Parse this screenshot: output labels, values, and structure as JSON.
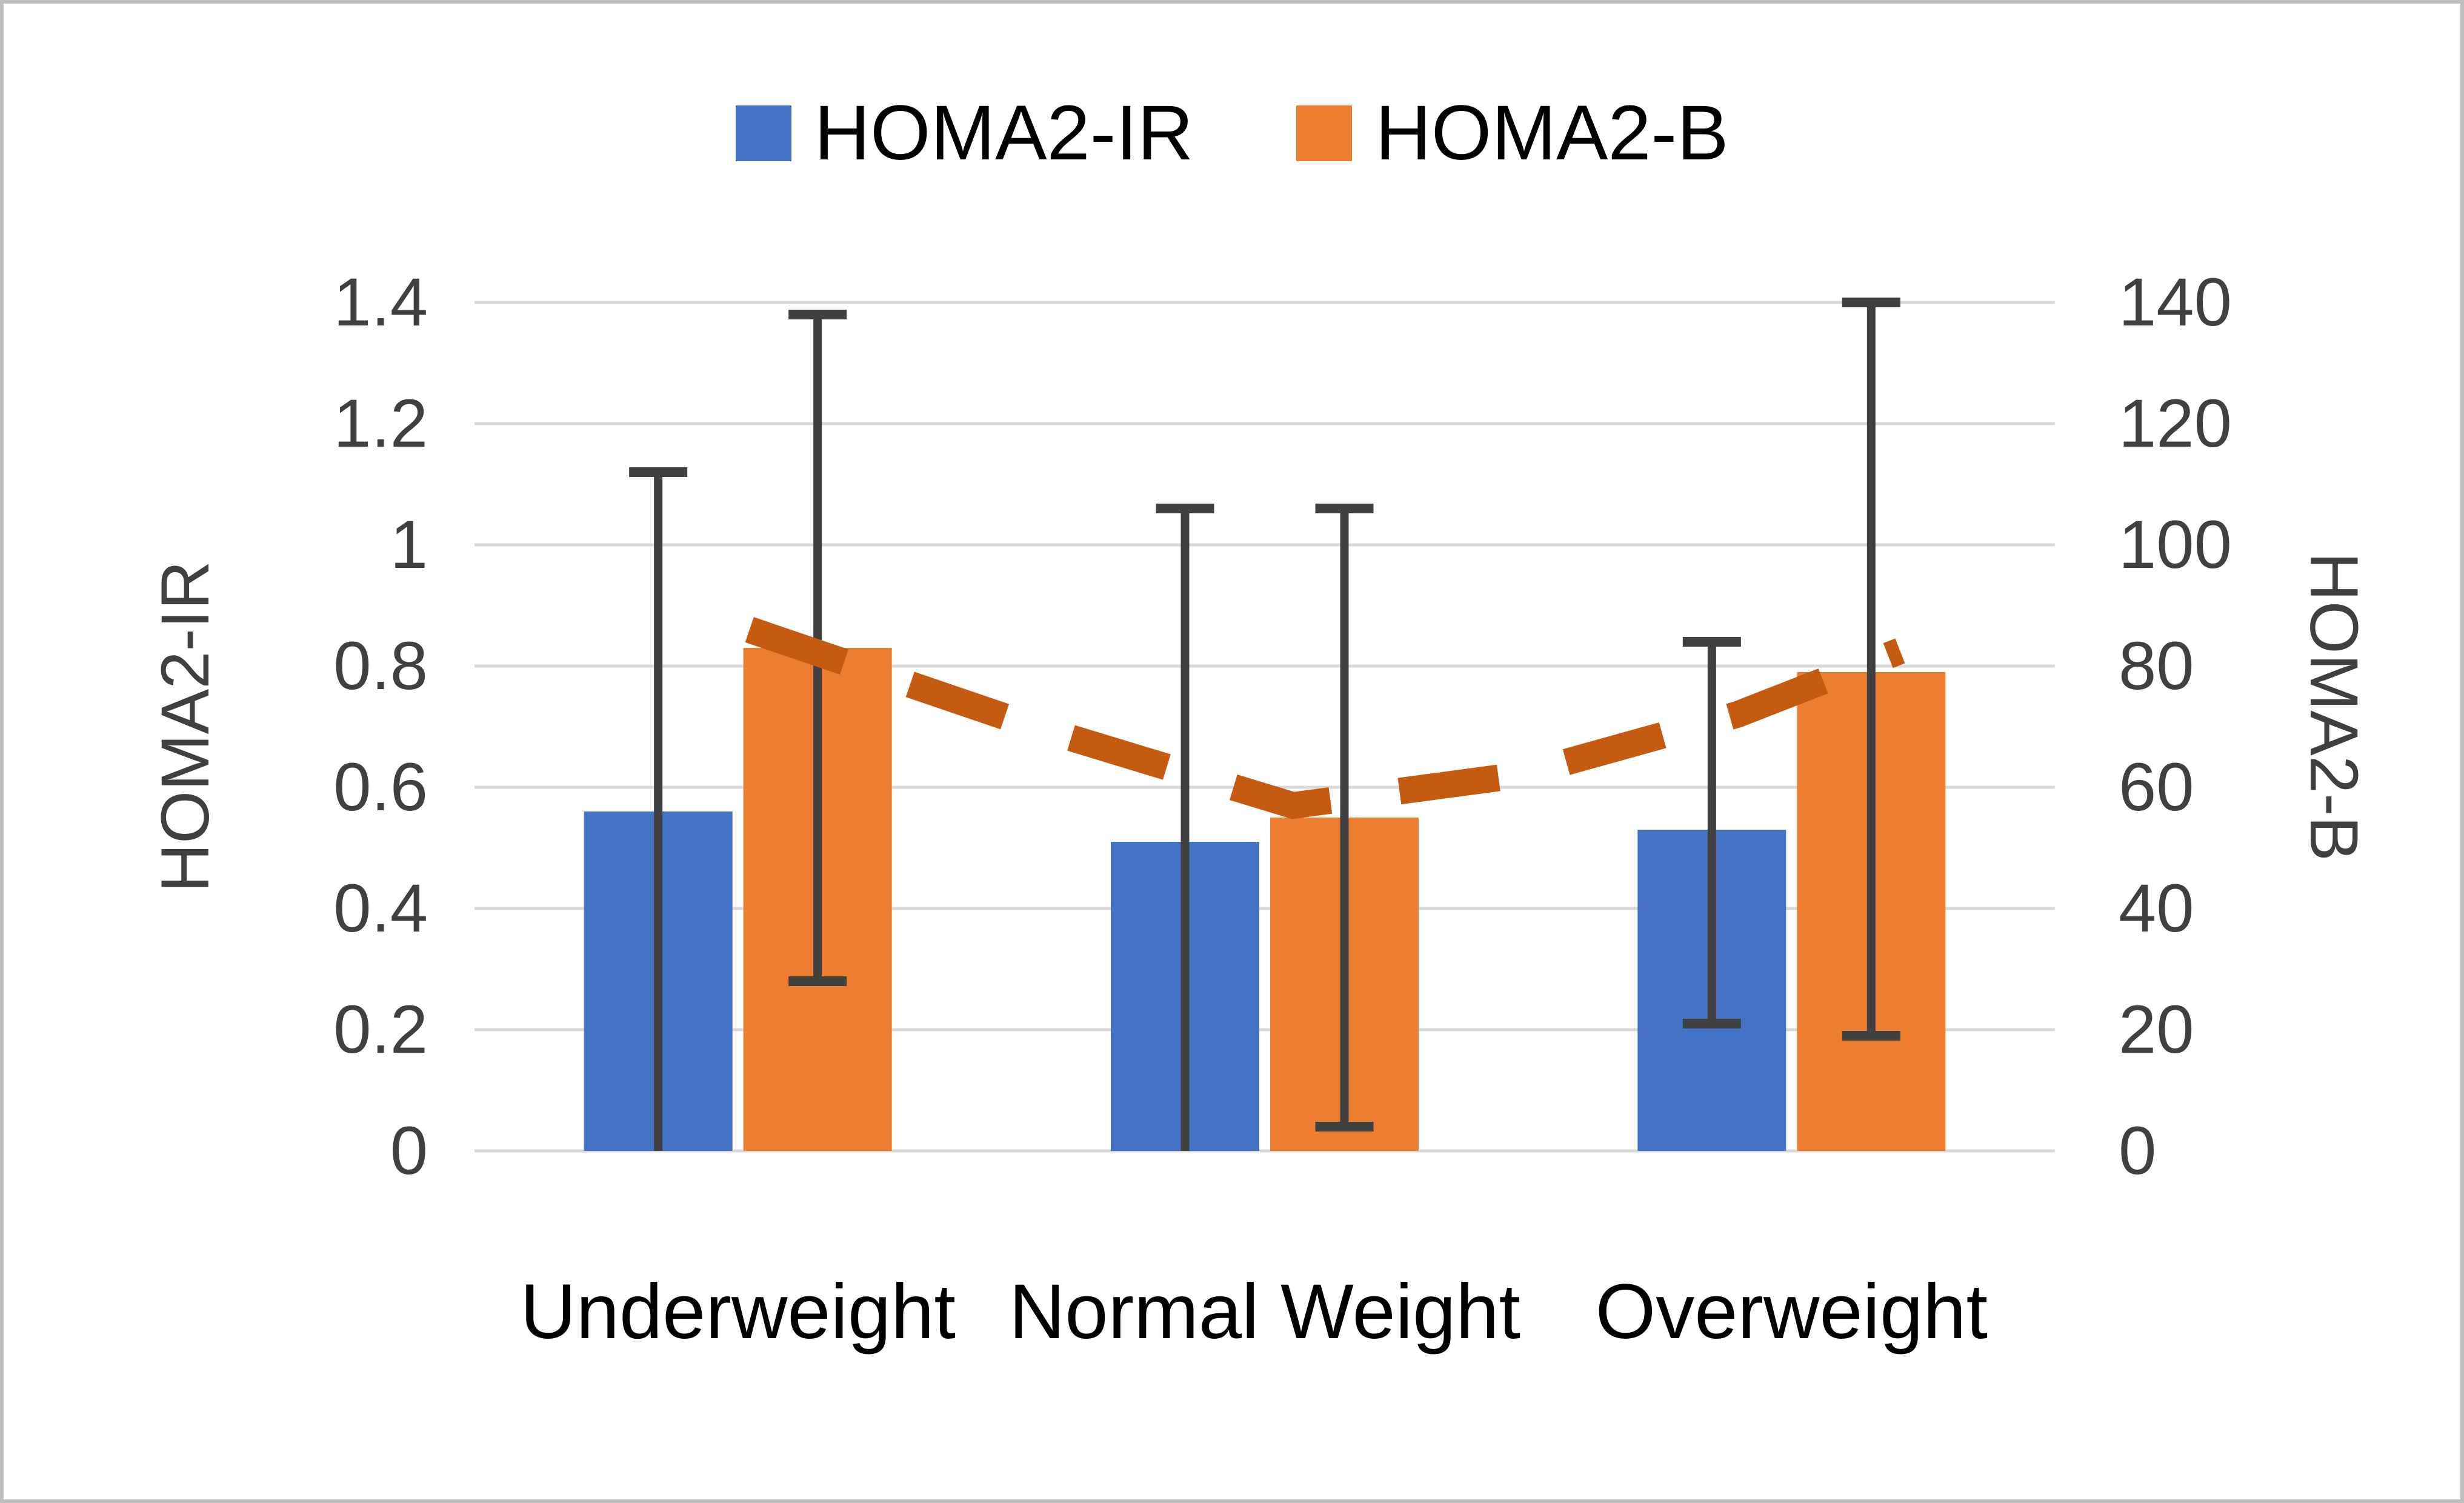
{
  "figure": {
    "background": "#ffffff",
    "border_color": "#bfbfbf"
  },
  "legend": {
    "items": [
      {
        "label": "HOMA2-IR",
        "color": "#4472C4"
      },
      {
        "label": "HOMA2-B",
        "color": "#ED7D31"
      }
    ]
  },
  "chart_data": {
    "type": "bar",
    "categories": [
      "Underweight",
      "Normal Weight",
      "Overweight"
    ],
    "series": [
      {
        "name": "HOMA2-IR",
        "axis": "left",
        "color": "#4472C4",
        "values": [
          0.56,
          0.51,
          0.53
        ],
        "error_top": [
          1.12,
          1.06,
          0.84
        ],
        "error_bottom": [
          0,
          0,
          0.21
        ],
        "error_bottom_cap": [
          false,
          false,
          true
        ]
      },
      {
        "name": "HOMA2-B",
        "axis": "right",
        "color": "#ED7D31",
        "values": [
          83,
          55,
          79
        ],
        "error_top": [
          138,
          106,
          140
        ],
        "error_bottom": [
          28,
          4,
          19
        ],
        "error_bottom_cap": [
          true,
          true,
          true
        ]
      }
    ],
    "left_axis": {
      "title": "HOMA2-IR",
      "min": 0,
      "max": 1.4,
      "step": 0.2,
      "tick_labels": [
        "0",
        "0.2",
        "0.4",
        "0.6",
        "0.8",
        "1",
        "1.2",
        "1.4"
      ]
    },
    "right_axis": {
      "title": "HOMA2-B",
      "min": 0,
      "max": 140,
      "step": 20,
      "tick_labels": [
        "0",
        "20",
        "40",
        "60",
        "80",
        "100",
        "120",
        "140"
      ]
    },
    "trendline": {
      "series": "HOMA2-B",
      "style": "dashed",
      "color": "#C55A11",
      "points_frac_value": [
        [
          0.174,
          86
        ],
        [
          0.354,
          70
        ],
        [
          0.518,
          57
        ],
        [
          0.661,
          62
        ],
        [
          0.799,
          72
        ],
        [
          0.902,
          82.5
        ]
      ]
    },
    "grid": {
      "on": true,
      "color": "#D9D9D9"
    },
    "error_bar_color": "#404040",
    "text_colors": {
      "ticks": "#404040",
      "axis_titles": "#404040",
      "categories": "#000000",
      "legend": "#000000"
    }
  }
}
